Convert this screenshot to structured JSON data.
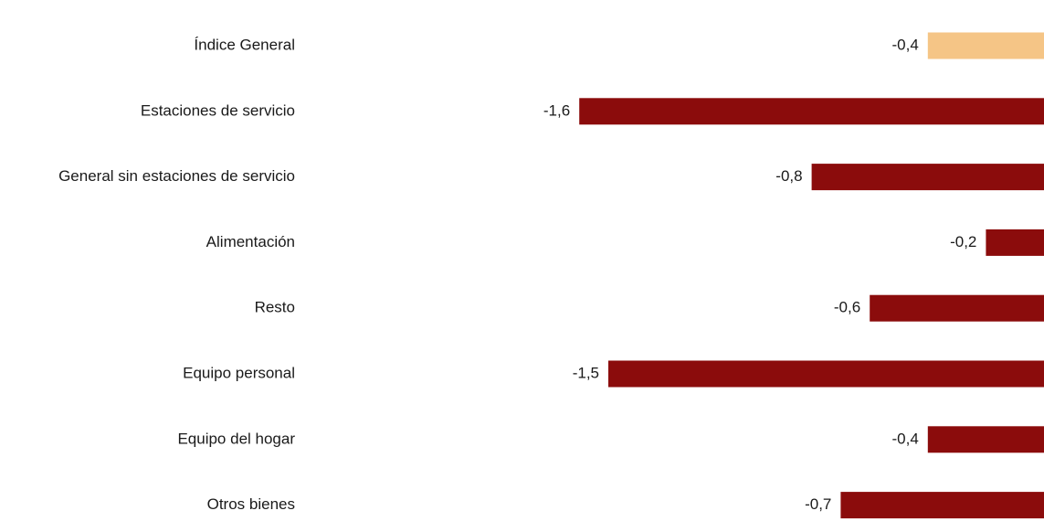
{
  "chart_data": {
    "type": "bar",
    "orientation": "horizontal",
    "title": "",
    "xlabel": "",
    "ylabel": "",
    "grid": false,
    "legend": "none",
    "xlim": [
      -1.6,
      0
    ],
    "categories": [
      "Índice General",
      "Estaciones de servicio",
      "General sin estaciones de servicio",
      "Alimentación",
      "Resto",
      "Equipo personal",
      "Equipo del hogar",
      "Otros bienes"
    ],
    "values": [
      -0.4,
      -1.6,
      -0.8,
      -0.2,
      -0.6,
      -1.5,
      -0.4,
      -0.7
    ],
    "value_labels": [
      "-0,4",
      "-1,6",
      "-0,8",
      "-0,2",
      "-0,6",
      "-1,5",
      "-0,4",
      "-0,7"
    ],
    "colors": {
      "highlight": "#F5C586",
      "default": "#8B0C0C"
    },
    "highlight_index": 0
  }
}
